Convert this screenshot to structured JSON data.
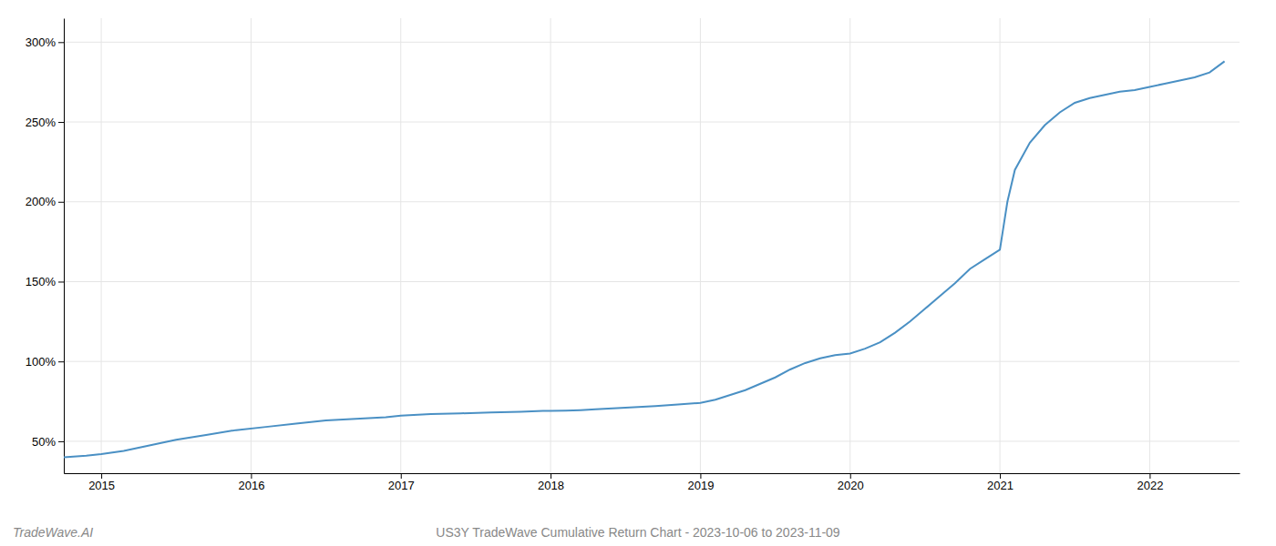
{
  "chart_data": {
    "type": "line",
    "title": "US3Y TradeWave Cumulative Return Chart - 2023-10-06 to 2023-11-09",
    "annotations": [
      "TradeWave.AI"
    ],
    "color": "#4a90c4",
    "x": [
      2014.75,
      2014.9,
      2015.0,
      2015.15,
      2015.3,
      2015.5,
      2015.7,
      2015.9,
      2016.1,
      2016.3,
      2016.5,
      2016.7,
      2016.9,
      2017.0,
      2017.2,
      2017.4,
      2017.6,
      2017.8,
      2017.95,
      2018.0,
      2018.1,
      2018.2,
      2018.3,
      2018.5,
      2018.7,
      2018.85,
      2019.0,
      2019.1,
      2019.2,
      2019.3,
      2019.4,
      2019.5,
      2019.6,
      2019.7,
      2019.8,
      2019.9,
      2020.0,
      2020.1,
      2020.2,
      2020.3,
      2020.4,
      2020.5,
      2020.6,
      2020.7,
      2020.8,
      2020.9,
      2021.0,
      2021.05,
      2021.1,
      2021.2,
      2021.3,
      2021.4,
      2021.5,
      2021.6,
      2021.7,
      2021.8,
      2021.9,
      2022.0,
      2022.1,
      2022.2,
      2022.3,
      2022.4,
      2022.5
    ],
    "values": [
      40,
      41,
      42,
      44,
      47,
      51,
      54,
      57,
      59,
      61,
      63,
      64,
      65,
      66,
      67,
      67.5,
      68,
      68.5,
      69,
      69,
      69.2,
      69.5,
      70,
      71,
      72,
      73,
      74,
      76,
      79,
      82,
      86,
      90,
      95,
      99,
      102,
      104,
      105,
      108,
      112,
      118,
      125,
      133,
      141,
      149,
      158,
      164,
      170,
      200,
      220,
      237,
      248,
      256,
      262,
      265,
      267,
      269,
      270,
      272,
      274,
      276,
      278,
      281,
      288
    ],
    "xlim": [
      2014.75,
      2022.6
    ],
    "ylim": [
      30,
      315
    ],
    "xticks": [
      2015,
      2016,
      2017,
      2018,
      2019,
      2020,
      2021,
      2022
    ],
    "yticks": [
      {
        "value": 50,
        "label": "50%"
      },
      {
        "value": 100,
        "label": "100%"
      },
      {
        "value": 150,
        "label": "150%"
      },
      {
        "value": 200,
        "label": "200%"
      },
      {
        "value": 250,
        "label": "250%"
      },
      {
        "value": 300,
        "label": "300%"
      }
    ],
    "grid": true
  }
}
